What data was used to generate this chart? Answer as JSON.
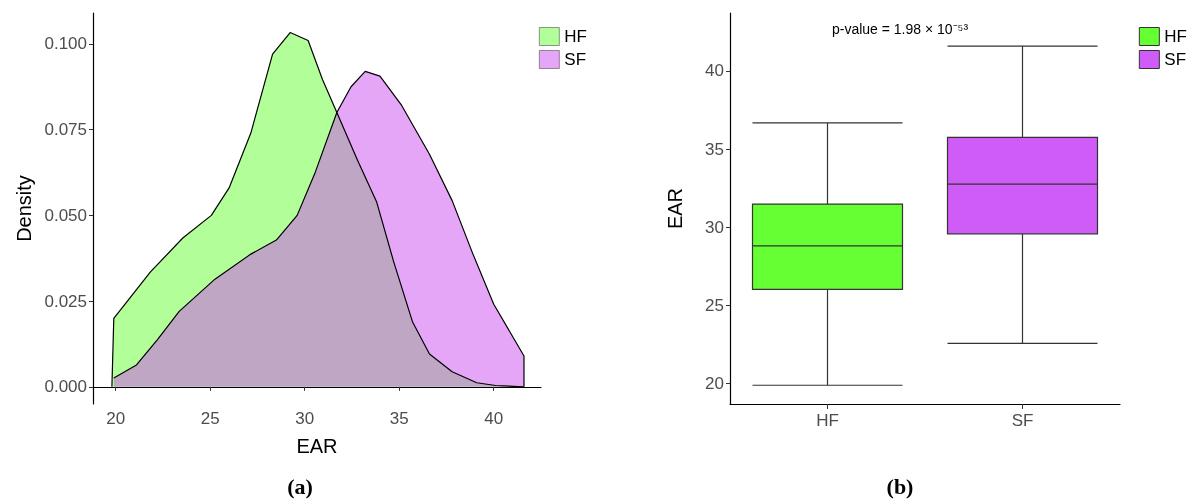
{
  "chart_data": [
    {
      "type": "area",
      "title": "(a)",
      "xlabel": "EAR",
      "ylabel": "Density",
      "xlim": [
        18.8,
        42.5
      ],
      "ylim": [
        -0.005,
        0.109
      ],
      "xticks": [
        20,
        25,
        30,
        35,
        40
      ],
      "yticks": [
        {
          "value": 0,
          "label": "0.000"
        },
        {
          "value": 0.025,
          "label": "0.025"
        },
        {
          "value": 0.05,
          "label": "0.050"
        },
        {
          "value": 0.075,
          "label": "0.075"
        },
        {
          "value": 0.1,
          "label": "0.100"
        }
      ],
      "grid": false,
      "legend": "top right",
      "marker": "none",
      "series": [
        {
          "name": "HF",
          "color": "#66ff33",
          "x": [
            19.8,
            19.9,
            21.84,
            23.55,
            25.06,
            26.0,
            27.15,
            28.3,
            29.23,
            30.18,
            30.94,
            31.7,
            32.8,
            33.8,
            34.7,
            35.7,
            36.6,
            37.8,
            39.1,
            40.1,
            41.6
          ],
          "values": [
            0,
            0.02,
            0.0335,
            0.0434,
            0.05,
            0.058,
            0.074,
            0.097,
            0.1033,
            0.101,
            0.0896,
            0.08,
            0.066,
            0.054,
            0.0366,
            0.019,
            0.0096,
            0.0044,
            0.0012,
            0.0004,
            0
          ]
        },
        {
          "name": "SF",
          "color": "#cd4df1",
          "x": [
            19.9,
            21.1,
            22.2,
            23.36,
            25.25,
            27.15,
            28.5,
            29.6,
            30.56,
            31.7,
            32.45,
            33.2,
            33.98,
            35.1,
            36.6,
            37.8,
            38.9,
            40.0,
            41.6,
            41.6
          ],
          "values": [
            0.0026,
            0.0064,
            0.0137,
            0.022,
            0.0314,
            0.0387,
            0.0428,
            0.05,
            0.0626,
            0.08,
            0.0875,
            0.092,
            0.0906,
            0.0823,
            0.0678,
            0.0543,
            0.0387,
            0.0241,
            0.009,
            0
          ]
        }
      ]
    },
    {
      "type": "box",
      "title": "(b)",
      "ylabel": "EAR",
      "categories": [
        "HF",
        "SF"
      ],
      "ylim": [
        18.7,
        43.7
      ],
      "yticks": [
        20,
        25,
        30,
        35,
        40
      ],
      "grid": false,
      "legend": "top right",
      "annotations": [
        "p-value = 1.98 × 10⁻⁵³"
      ],
      "series": [
        {
          "name": "HF",
          "color": "#66ff33",
          "boxes": [
            {
              "low": 19.9,
              "q1": 26.03,
              "median": 28.81,
              "q3": 31.48,
              "high": 36.67
            },
            null
          ]
        },
        {
          "name": "SF",
          "color": "#d05cf8",
          "boxes": [
            null,
            {
              "low": 22.58,
              "q1": 29.58,
              "median": 32.76,
              "q3": 35.75,
              "high": 41.58
            }
          ]
        }
      ]
    }
  ]
}
